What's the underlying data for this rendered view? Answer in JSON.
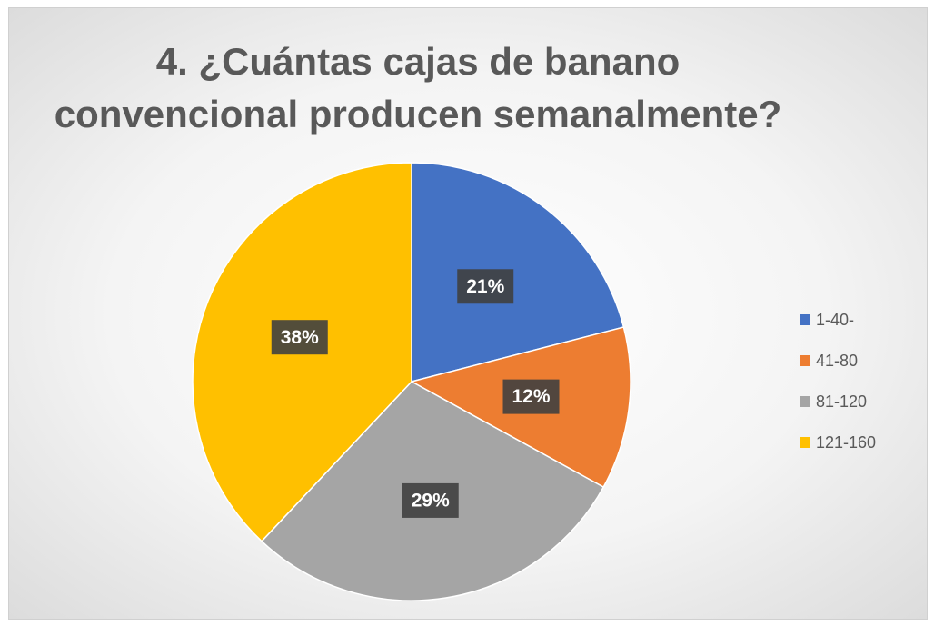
{
  "chart_data": {
    "type": "pie",
    "title": "4. ¿Cuántas cajas de banano\nconvencional producen semanalmente?",
    "categories": [
      "1-40-",
      "41-80",
      "81-120",
      "121-160"
    ],
    "values": [
      21,
      12,
      29,
      38
    ],
    "value_labels": [
      "21%",
      "12%",
      "29%",
      "38%"
    ],
    "colors": [
      "#4472c4",
      "#ed7d31",
      "#a5a5a5",
      "#ffc000"
    ],
    "legend": "right"
  }
}
